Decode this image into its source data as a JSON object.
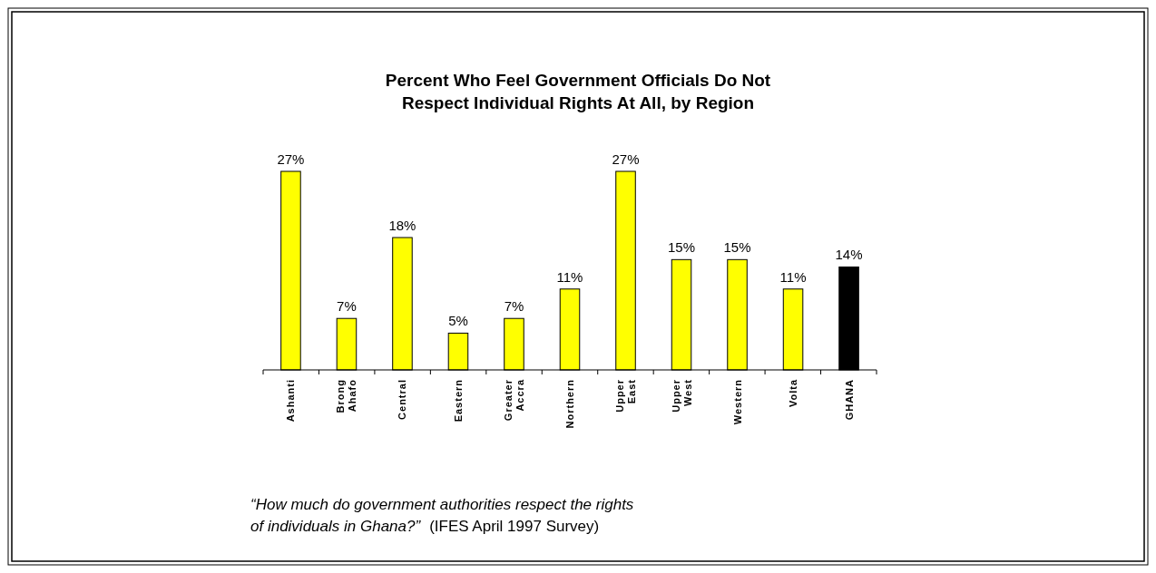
{
  "chart_data": {
    "type": "bar",
    "title": [
      "Percent Who Feel Government Officials Do Not",
      "Respect Individual Rights At All, by Region"
    ],
    "categories": [
      "Ashanti",
      "Brong Ahafo",
      "Central",
      "Eastern",
      "Greater Accra",
      "Northern",
      "Upper East",
      "Upper West",
      "Western",
      "Volta",
      "GHANA"
    ],
    "values": [
      27,
      7,
      18,
      5,
      7,
      11,
      27,
      15,
      15,
      11,
      14
    ],
    "colors": [
      "#ffff00",
      "#ffff00",
      "#ffff00",
      "#ffff00",
      "#ffff00",
      "#ffff00",
      "#ffff00",
      "#ffff00",
      "#ffff00",
      "#ffff00",
      "#000000"
    ],
    "value_labels": [
      "27%",
      "7%",
      "18%",
      "5%",
      "7%",
      "11%",
      "27%",
      "15%",
      "15%",
      "11%",
      "14%"
    ],
    "annotations": [
      "“How much do government authorities respect the rights of individuals in Ghana?”",
      "(IFES April 1997 Survey)"
    ]
  }
}
